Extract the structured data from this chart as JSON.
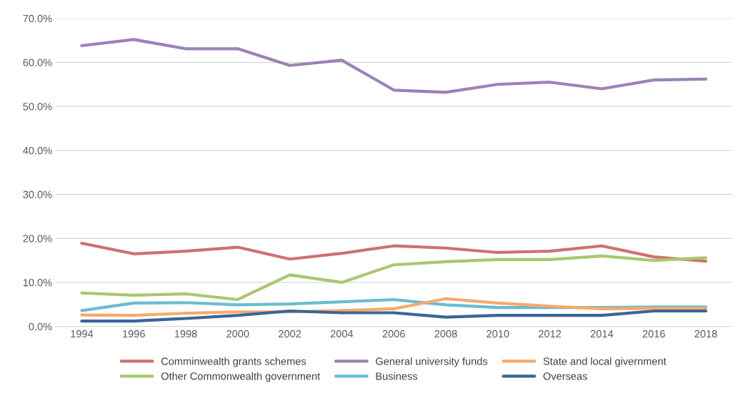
{
  "chart_data": {
    "type": "line",
    "categories": [
      "1994",
      "1996",
      "1998",
      "2000",
      "2002",
      "2004",
      "2006",
      "2008",
      "2010",
      "2012",
      "2014",
      "2016",
      "2018"
    ],
    "series": [
      {
        "name": "Comminwealth grants schemes",
        "color": "#d07070",
        "values": [
          18.9,
          16.5,
          17.1,
          18.0,
          15.3,
          16.6,
          18.3,
          17.8,
          16.8,
          17.1,
          18.3,
          15.8,
          14.8
        ]
      },
      {
        "name": "Other Commonwealth government",
        "color": "#a9c770",
        "values": [
          7.6,
          7.1,
          7.4,
          6.1,
          11.7,
          10.0,
          14.0,
          14.7,
          15.2,
          15.2,
          16.0,
          15.0,
          15.6
        ]
      },
      {
        "name": "General university funds",
        "color": "#9b82b8",
        "values": [
          63.8,
          65.2,
          63.1,
          63.1,
          59.3,
          60.5,
          53.7,
          53.2,
          55.0,
          55.5,
          54.0,
          56.0,
          56.2
        ]
      },
      {
        "name": "Business",
        "color": "#6bbcd1",
        "values": [
          3.6,
          5.3,
          5.4,
          4.9,
          5.1,
          5.6,
          6.1,
          4.9,
          4.3,
          4.3,
          4.3,
          4.4,
          4.4
        ]
      },
      {
        "name": "State and local givernment",
        "color": "#f7a96b",
        "values": [
          2.6,
          2.5,
          3.0,
          3.3,
          3.3,
          3.6,
          4.0,
          6.3,
          5.3,
          4.6,
          4.0,
          4.1,
          4.1
        ]
      },
      {
        "name": "Overseas",
        "color": "#3a6598",
        "values": [
          1.2,
          1.2,
          1.8,
          2.5,
          3.5,
          3.1,
          3.1,
          2.1,
          2.5,
          2.5,
          2.5,
          3.5,
          3.5
        ]
      }
    ],
    "ylim": [
      0,
      70
    ],
    "yticks": [
      {
        "value": 0,
        "label": "0.0%"
      },
      {
        "value": 10,
        "label": "10.0%"
      },
      {
        "value": 20,
        "label": "20.0%"
      },
      {
        "value": 30,
        "label": "30.0%"
      },
      {
        "value": 40,
        "label": "40.0%"
      },
      {
        "value": 50,
        "label": "50.0%"
      },
      {
        "value": 60,
        "label": "60.0%"
      },
      {
        "value": 70,
        "label": "70.0%"
      }
    ],
    "grid": "y",
    "legend": "bottom",
    "marker": "none",
    "line_style": "solid"
  }
}
